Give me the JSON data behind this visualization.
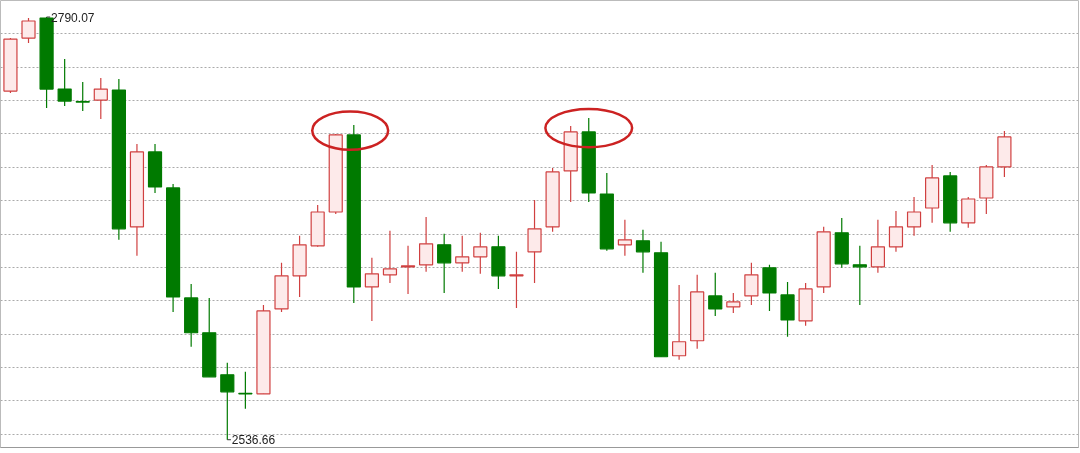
{
  "chart_data": {
    "type": "candlestick",
    "categories": [
      null,
      null,
      null,
      null,
      null,
      null,
      null,
      null,
      null,
      null,
      null,
      null,
      null,
      null,
      null,
      null,
      null,
      null,
      null,
      null,
      null,
      null,
      null,
      null,
      null,
      null,
      null,
      null,
      null,
      null,
      null,
      null,
      null,
      null,
      null,
      null,
      null,
      null,
      null,
      null,
      null,
      null,
      null,
      null,
      null,
      null,
      null,
      null,
      null,
      null,
      null,
      null,
      null,
      null,
      null,
      null
    ],
    "ohlc": [
      [
        2745.7,
        2777.5,
        2744.5,
        2776.9
      ],
      [
        2777.5,
        2789.5,
        2774.5,
        2787.7
      ],
      [
        2789.5,
        2790.07,
        2735.6,
        2746.9
      ],
      [
        2746.9,
        2764.9,
        2736.8,
        2739.7
      ],
      [
        2739.4,
        2751.1,
        2733.8,
        2739.1
      ],
      [
        2740.3,
        2753.5,
        2729.0,
        2746.9
      ],
      [
        2746.3,
        2752.9,
        2656.5,
        2663.1
      ],
      [
        2664.3,
        2714.0,
        2646.9,
        2709.2
      ],
      [
        2709.2,
        2714.0,
        2684.6,
        2688.2
      ],
      [
        2687.6,
        2690.0,
        2613.3,
        2622.3
      ],
      [
        2621.7,
        2630.1,
        2592.4,
        2600.8
      ],
      [
        2600.8,
        2621.7,
        2574.4,
        2574.4
      ],
      [
        2575.6,
        2582.8,
        2536.66,
        2565.4
      ],
      [
        2564.5,
        2577.4,
        2555.2,
        2564.2
      ],
      [
        2564.2,
        2617.5,
        2564.2,
        2613.9
      ],
      [
        2615.1,
        2642.7,
        2613.3,
        2634.9
      ],
      [
        2634.9,
        2658.9,
        2622.3,
        2653.5
      ],
      [
        2652.9,
        2677.4,
        2652.3,
        2673.2
      ],
      [
        2673.2,
        2720.0,
        2672.0,
        2719.4
      ],
      [
        2719.4,
        2725.4,
        2618.7,
        2628.3
      ],
      [
        2628.3,
        2645.7,
        2607.9,
        2636.1
      ],
      [
        2635.5,
        2661.9,
        2630.7,
        2639.1
      ],
      [
        2640.3,
        2652.9,
        2624.1,
        2640.9
      ],
      [
        2641.5,
        2670.2,
        2637.3,
        2654.1
      ],
      [
        2653.5,
        2660.1,
        2624.7,
        2642.7
      ],
      [
        2642.7,
        2658.9,
        2637.3,
        2646.3
      ],
      [
        2646.3,
        2660.7,
        2636.1,
        2652.3
      ],
      [
        2652.3,
        2658.9,
        2627.1,
        2634.9
      ],
      [
        2634.9,
        2649.3,
        2615.7,
        2635.5
      ],
      [
        2649.3,
        2680.4,
        2630.7,
        2663.1
      ],
      [
        2664.3,
        2699.6,
        2661.3,
        2697.2
      ],
      [
        2697.8,
        2724.8,
        2679.2,
        2721.2
      ],
      [
        2721.2,
        2729.6,
        2679.2,
        2684.6
      ],
      [
        2684.0,
        2696.6,
        2649.9,
        2651.1
      ],
      [
        2653.5,
        2668.5,
        2646.9,
        2656.5
      ],
      [
        2655.9,
        2662.5,
        2636.7,
        2649.3
      ],
      [
        2648.7,
        2655.3,
        2586.4,
        2586.4
      ],
      [
        2587.0,
        2629.5,
        2584.6,
        2595.4
      ],
      [
        2596.0,
        2635.5,
        2591.2,
        2625.3
      ],
      [
        2622.9,
        2636.7,
        2610.9,
        2615.1
      ],
      [
        2616.3,
        2624.7,
        2612.7,
        2619.3
      ],
      [
        2622.9,
        2642.7,
        2617.5,
        2635.5
      ],
      [
        2639.7,
        2641.5,
        2613.9,
        2624.7
      ],
      [
        2623.5,
        2631.3,
        2598.4,
        2608.5
      ],
      [
        2607.9,
        2630.7,
        2605.0,
        2627.1
      ],
      [
        2628.3,
        2664.3,
        2624.7,
        2661.3
      ],
      [
        2660.7,
        2669.6,
        2639.7,
        2642.1
      ],
      [
        2641.5,
        2652.9,
        2617.5,
        2640.3
      ],
      [
        2640.3,
        2668.5,
        2636.7,
        2652.3
      ],
      [
        2652.3,
        2673.8,
        2649.3,
        2664.3
      ],
      [
        2664.3,
        2682.2,
        2658.9,
        2673.2
      ],
      [
        2675.6,
        2701.4,
        2666.7,
        2693.6
      ],
      [
        2694.8,
        2697.2,
        2661.3,
        2666.7
      ],
      [
        2666.7,
        2682.2,
        2663.7,
        2681.0
      ],
      [
        2681.6,
        2701.4,
        2672.0,
        2700.2
      ],
      [
        2700.2,
        2721.8,
        2694.2,
        2718.2
      ]
    ],
    "colors": [
      "#d04040",
      "#d04040",
      "#007a00",
      "#007a00",
      "#007a00",
      "#d04040",
      "#007a00",
      "#d04040",
      "#007a00",
      "#007a00",
      "#007a00",
      "#007a00",
      "#007a00",
      "#007a00",
      "#d04040",
      "#d04040",
      "#d04040",
      "#d04040",
      "#d04040",
      "#007a00",
      "#d04040",
      "#d04040",
      "#d04040",
      "#d04040",
      "#007a00",
      "#d04040",
      "#d04040",
      "#007a00",
      "#d04040",
      "#d04040",
      "#d04040",
      "#d04040",
      "#007a00",
      "#007a00",
      "#d04040",
      "#007a00",
      "#007a00",
      "#d04040",
      "#d04040",
      "#007a00",
      "#d04040",
      "#d04040",
      "#007a00",
      "#007a00",
      "#d04040",
      "#d04040",
      "#007a00",
      "#007a00",
      "#d04040",
      "#d04040",
      "#d04040",
      "#d04040",
      "#007a00",
      "#d04040",
      "#d04040",
      "#d04040"
    ],
    "ylim": [
      2532,
      2800
    ],
    "yticks": [
      {
        "value": 2540,
        "label": null
      },
      {
        "value": 2560,
        "label": null
      },
      {
        "value": 2580,
        "label": null
      },
      {
        "value": 2600,
        "label": null
      },
      {
        "value": 2620,
        "label": null
      },
      {
        "value": 2640,
        "label": null
      },
      {
        "value": 2660,
        "label": null
      },
      {
        "value": 2680,
        "label": null
      },
      {
        "value": 2700,
        "label": null
      },
      {
        "value": 2720,
        "label": null
      },
      {
        "value": 2740,
        "label": null
      },
      {
        "value": 2760,
        "label": null
      },
      {
        "value": 2780,
        "label": null
      }
    ],
    "grid": "y",
    "tick_labels": false,
    "annotations": [
      "2790.07",
      "2536.66"
    ]
  }
}
